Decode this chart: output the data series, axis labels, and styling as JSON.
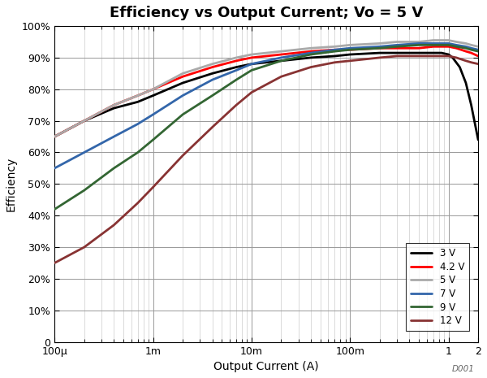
{
  "title": "Efficiency vs Output Current; Vo = 5 V",
  "xlabel": "Output Current (A)",
  "ylabel": "Efficiency",
  "watermark": "D001",
  "ylim": [
    0,
    100
  ],
  "yticks": [
    0,
    10,
    20,
    30,
    40,
    50,
    60,
    70,
    80,
    90,
    100
  ],
  "ytick_labels": [
    "0",
    "10%",
    "20%",
    "30%",
    "40%",
    "50%",
    "60%",
    "70%",
    "80%",
    "90%",
    "100%"
  ],
  "xtick_positions": [
    0.0001,
    0.001,
    0.01,
    0.1,
    1.0,
    2.0
  ],
  "xtick_labels": [
    "100μ",
    "1m",
    "10m",
    "100m",
    "1",
    "2"
  ],
  "curves": [
    {
      "label": "3 V",
      "color": "#000000",
      "linewidth": 2.0,
      "x": [
        0.0001,
        0.0002,
        0.0004,
        0.0007,
        0.001,
        0.002,
        0.004,
        0.007,
        0.01,
        0.02,
        0.04,
        0.07,
        0.1,
        0.2,
        0.3,
        0.5,
        0.7,
        0.85,
        1.0,
        1.1,
        1.3,
        1.5,
        1.7,
        2.0
      ],
      "y": [
        65,
        70,
        74,
        76,
        78,
        82,
        85,
        87,
        88,
        89,
        90,
        90.5,
        91,
        91.5,
        91.5,
        91.5,
        91.5,
        91.5,
        91.0,
        90.0,
        87.0,
        82.0,
        75.0,
        64.0
      ]
    },
    {
      "label": "4.2 V",
      "color": "#ff0000",
      "linewidth": 2.0,
      "x": [
        0.0001,
        0.0002,
        0.0004,
        0.0007,
        0.001,
        0.002,
        0.004,
        0.007,
        0.01,
        0.02,
        0.04,
        0.07,
        0.1,
        0.2,
        0.3,
        0.5,
        0.7,
        0.85,
        1.0,
        1.2,
        1.5,
        1.7,
        2.0
      ],
      "y": [
        65,
        70,
        75,
        78,
        80,
        84,
        87,
        89,
        90,
        91,
        92,
        92.5,
        92.5,
        93,
        93,
        93,
        93.5,
        93.5,
        93.5,
        93.0,
        92.0,
        91.5,
        90.5
      ]
    },
    {
      "label": "5 V",
      "color": "#aaaaaa",
      "linewidth": 2.0,
      "x": [
        0.0001,
        0.0002,
        0.0004,
        0.0007,
        0.001,
        0.002,
        0.004,
        0.007,
        0.01,
        0.02,
        0.04,
        0.07,
        0.1,
        0.2,
        0.3,
        0.5,
        0.7,
        0.85,
        1.0,
        1.2,
        1.5,
        1.7,
        2.0
      ],
      "y": [
        65,
        70,
        75,
        78,
        80,
        85,
        88,
        90,
        91,
        92,
        93,
        93.5,
        94,
        94.5,
        95,
        95,
        95.5,
        95.5,
        95.5,
        95.0,
        94.5,
        94.0,
        93.5
      ]
    },
    {
      "label": "7 V",
      "color": "#3366aa",
      "linewidth": 2.0,
      "x": [
        0.0001,
        0.0002,
        0.0004,
        0.0007,
        0.001,
        0.002,
        0.004,
        0.007,
        0.01,
        0.02,
        0.04,
        0.07,
        0.1,
        0.2,
        0.3,
        0.5,
        0.7,
        0.85,
        1.0,
        1.2,
        1.5,
        1.7,
        2.0
      ],
      "y": [
        55,
        60,
        65,
        69,
        72,
        78,
        83,
        86,
        88,
        90,
        91.5,
        92.5,
        93,
        93.5,
        94,
        94.5,
        94.5,
        94.5,
        94.5,
        94.0,
        93.5,
        93.0,
        92.5
      ]
    },
    {
      "label": "9 V",
      "color": "#336633",
      "linewidth": 2.0,
      "x": [
        0.0001,
        0.0002,
        0.0004,
        0.0007,
        0.001,
        0.002,
        0.004,
        0.007,
        0.01,
        0.02,
        0.04,
        0.07,
        0.1,
        0.2,
        0.3,
        0.5,
        0.7,
        0.85,
        1.0,
        1.2,
        1.5,
        1.7,
        2.0
      ],
      "y": [
        42,
        48,
        55,
        60,
        64,
        72,
        78,
        83,
        86,
        89,
        91,
        92,
        92.5,
        93,
        93.5,
        94,
        94,
        94,
        94,
        93.5,
        93.0,
        92.5,
        92.0
      ]
    },
    {
      "label": "12 V",
      "color": "#883333",
      "linewidth": 2.0,
      "x": [
        0.0001,
        0.0002,
        0.0004,
        0.0007,
        0.001,
        0.002,
        0.004,
        0.007,
        0.01,
        0.02,
        0.04,
        0.07,
        0.1,
        0.2,
        0.3,
        0.5,
        0.7,
        0.85,
        1.0,
        1.2,
        1.5,
        1.7,
        2.0
      ],
      "y": [
        25,
        30,
        37,
        44,
        49,
        59,
        68,
        75,
        79,
        84,
        87,
        88.5,
        89,
        90,
        90.5,
        90.5,
        90.5,
        90.5,
        90.5,
        90.0,
        89.0,
        88.5,
        88.0
      ]
    }
  ],
  "bg_color": "#ffffff",
  "grid_major_color": "#999999",
  "grid_minor_color": "#cccccc",
  "title_fontsize": 13,
  "label_fontsize": 10,
  "tick_fontsize": 9
}
